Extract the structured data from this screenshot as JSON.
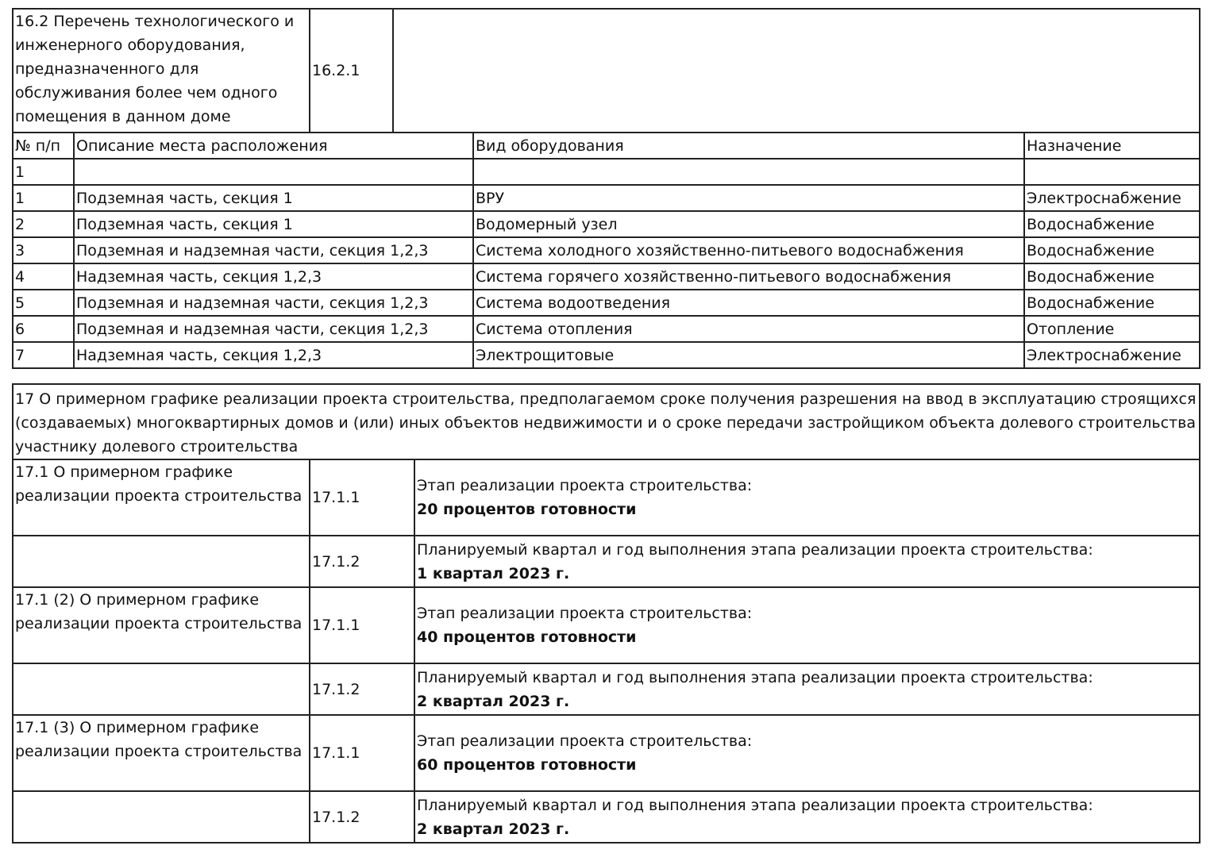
{
  "section_16_2": {
    "title": "16.2 Перечень технологического и инженерного оборудования, предназначенного для обслуживания более чем одного помещения в данном доме",
    "code": "16.2.1",
    "value": ""
  },
  "equipment": {
    "headers": [
      "№ п/п",
      "Описание места расположения",
      "Вид оборудования",
      "Назначение"
    ],
    "rows": [
      [
        "1",
        "",
        "",
        ""
      ],
      [
        "1",
        "Подземная часть, секция 1",
        "ВРУ",
        "Электроснабжение"
      ],
      [
        "2",
        "Подземная часть, секция 1",
        "Водомерный узел",
        "Водоснабжение"
      ],
      [
        "3",
        "Подземная и надземная части, секция 1,2,3",
        "Система холодного хозяйственно-питьевого водоснабжения",
        "Водоснабжение"
      ],
      [
        "4",
        "Надземная часть, секция 1,2,3",
        "Система горячего хозяйственно-питьевого водоснабжения",
        "Водоснабжение"
      ],
      [
        "5",
        "Подземная и надземная части, секция 1,2,3",
        "Система водоотведения",
        "Водоснабжение"
      ],
      [
        "6",
        "Подземная и надземная части, секция 1,2,3",
        "Система отопления",
        "Отопление"
      ],
      [
        "7",
        "Надземная часть, секция 1,2,3",
        "Электрощитовые",
        "Электроснабжение"
      ]
    ]
  },
  "section_17": {
    "title": "17 О примерном графике реализации проекта строительства, предполагаемом сроке получения разрешения на ввод в эксплуатацию строящихся (создаваемых) многоквартирных домов и (или) иных объектов недвижимости и о сроке передачи застройщиком объекта долевого строительства участнику долевого строительства"
  },
  "schedule": [
    {
      "title": "17.1 О примерном графике реализации проекта строительства",
      "stage_code": "17.1.1",
      "stage_label": "Этап реализации проекта строительства:",
      "stage_value": "20 процентов готовности",
      "quarter_code": "17.1.2",
      "quarter_label": "Планируемый квартал и год выполнения этапа реализации проекта строительства:",
      "quarter_value": "1 квартал 2023 г."
    },
    {
      "title": "17.1 (2) О примерном графике реализации проекта строительства",
      "stage_code": "17.1.1",
      "stage_label": "Этап реализации проекта строительства:",
      "stage_value": "40 процентов готовности",
      "quarter_code": "17.1.2",
      "quarter_label": "Планируемый квартал и год выполнения этапа реализации проекта строительства:",
      "quarter_value": "2 квартал 2023 г."
    },
    {
      "title": "17.1 (3) О примерном графике реализации проекта строительства",
      "stage_code": "17.1.1",
      "stage_label": "Этап реализации проекта строительства:",
      "stage_value": "60 процентов готовности",
      "quarter_code": "17.1.2",
      "quarter_label": "Планируемый квартал и год выполнения этапа реализации проекта строительства:",
      "quarter_value": "2 квартал 2023 г."
    }
  ]
}
